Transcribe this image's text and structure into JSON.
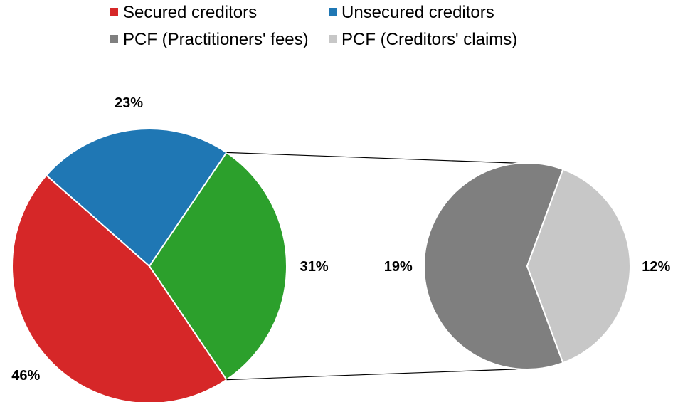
{
  "chart_data": {
    "type": "pie",
    "title": "",
    "legend": {
      "placement": "top",
      "entries": [
        {
          "label": "Secured creditors",
          "color": "#d62728"
        },
        {
          "label": "Unsecured creditors",
          "color": "#1f77b4"
        },
        {
          "label": "PCF (Practitioners' fees)",
          "color": "#7f7f7f"
        },
        {
          "label": "PCF (Creditors' claims)",
          "color": "#c7c7c7"
        }
      ]
    },
    "main_pie": {
      "slices": [
        {
          "name": "Secured creditors",
          "value": 46,
          "label": "46%",
          "color": "#d62728"
        },
        {
          "name": "Unsecured creditors",
          "value": 23,
          "label": "23%",
          "color": "#1f77b4"
        },
        {
          "name": "PCF",
          "value": 31,
          "label": "31%",
          "color": "#2ca02c"
        }
      ]
    },
    "detail_pie": {
      "breakdown_of": "PCF",
      "slices": [
        {
          "name": "PCF (Practitioners' fees)",
          "value": 19,
          "label": "19%",
          "color": "#7f7f7f"
        },
        {
          "name": "PCF (Creditors' claims)",
          "value": 12,
          "label": "12%",
          "color": "#c7c7c7"
        }
      ]
    }
  }
}
